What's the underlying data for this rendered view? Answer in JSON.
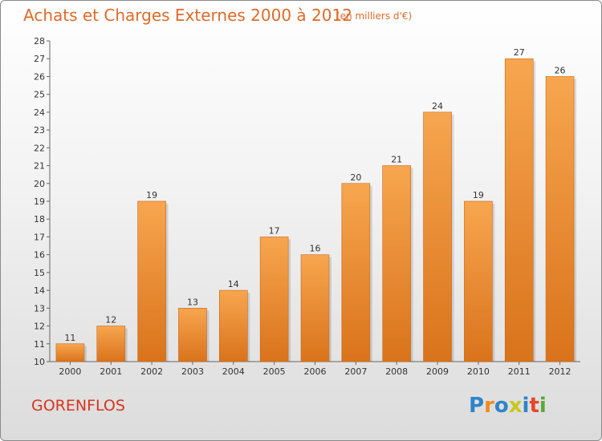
{
  "header": {
    "title": "Achats et Charges Externes 2000 à 2012",
    "subtitle": "(en milliers d'€)"
  },
  "footer": {
    "town": "GORENFLOS",
    "brand": "Proxiti",
    "brand_letters": [
      {
        "ch": "P",
        "color": "#2f84c8"
      },
      {
        "ch": "r",
        "color": "#f08a1e"
      },
      {
        "ch": "o",
        "color": "#2f84c8"
      },
      {
        "ch": "x",
        "color": "#c8c81e"
      },
      {
        "ch": "i",
        "color": "#2f84c8"
      },
      {
        "ch": "t",
        "color": "#e2482a"
      },
      {
        "ch": "i",
        "color": "#5aa83a"
      }
    ]
  },
  "colors": {
    "bar_light": "#f7a64f",
    "bar_dark": "#d9731b",
    "accent": "#e06a2a"
  },
  "chart_data": {
    "type": "bar",
    "categories": [
      "2000",
      "2001",
      "2002",
      "2003",
      "2004",
      "2005",
      "2006",
      "2007",
      "2008",
      "2009",
      "2010",
      "2011",
      "2012"
    ],
    "values": [
      11,
      12,
      19,
      13,
      14,
      17,
      16,
      20,
      21,
      24,
      19,
      27,
      26
    ],
    "title": "Achats et Charges Externes 2000 à 2012",
    "ylim": [
      10,
      28
    ],
    "yticks": [
      10,
      11,
      12,
      13,
      14,
      15,
      16,
      17,
      18,
      19,
      20,
      21,
      22,
      23,
      24,
      25,
      26,
      27,
      28
    ],
    "grid": false,
    "data_labels": true
  }
}
